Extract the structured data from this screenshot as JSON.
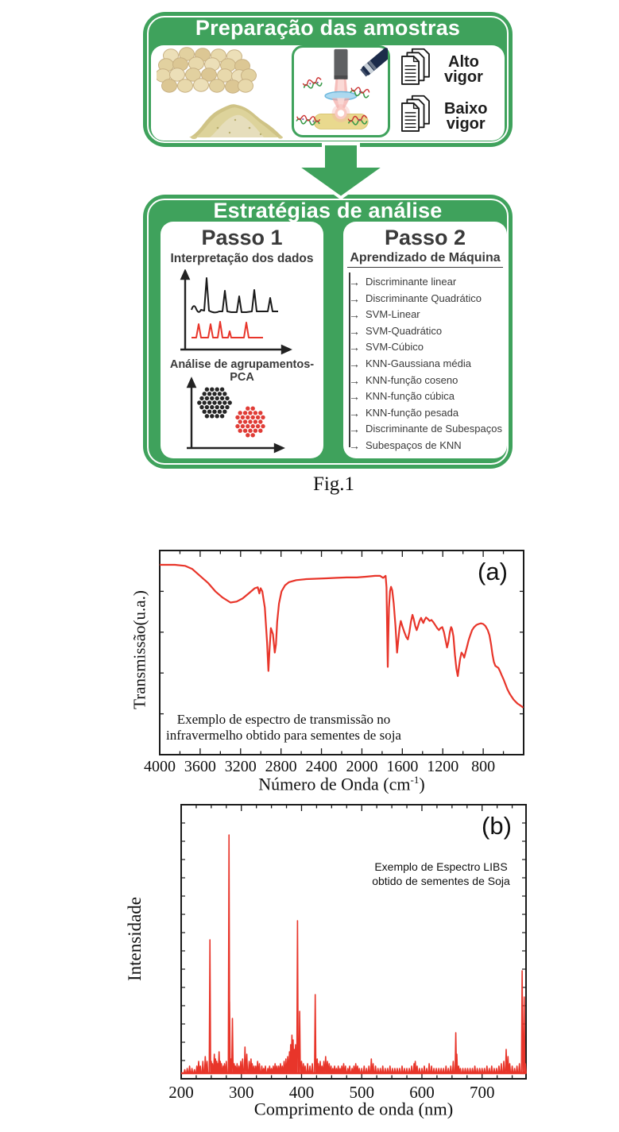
{
  "colors": {
    "green": "#3fa25c",
    "red": "#e8352a",
    "dark": "#3a3a3a"
  },
  "figure": {
    "caption": "Fig.1",
    "prep": {
      "title": "Preparação das amostras",
      "images": [
        "soybean-seeds-photo",
        "soy-flour-photo",
        "laser-ablation-illustration"
      ],
      "docs": [
        {
          "line1": "Alto",
          "line2": "vigor"
        },
        {
          "line1": "Baixo",
          "line2": "vigor"
        }
      ]
    },
    "analysis": {
      "title": "Estratégias de análise",
      "step1": {
        "title": "Passo 1",
        "sub_data": "Interpretação dos dados",
        "sub_pca": "Análise de agrupamentos-PCA"
      },
      "step2": {
        "title": "Passo 2",
        "subtitle": "Aprendizado de Máquina",
        "arrow_glyph": "→",
        "methods": [
          "Discriminante linear",
          "Discriminante Quadrático",
          "SVM-Linear",
          "SVM-Quadrático",
          "SVM-Cúbico",
          "KNN-Gaussiana média",
          "KNN-função coseno",
          "KNN-função cúbica",
          "KNN-função pesada",
          "Discriminante de Subespaços",
          "Subespaços de KNN"
        ]
      }
    }
  },
  "chart_data": [
    {
      "id": "ir",
      "type": "line",
      "panel_label": "(a)",
      "ylabel": "Transmissão(u.a.)",
      "xlabel": {
        "main": "Número de Onda (cm",
        "sup": "-1",
        "end": ")"
      },
      "annotation": [
        "Exemplo de espectro de transmissão no",
        "infravermelho obtido para sementes de soja"
      ],
      "x_range": [
        4000,
        400
      ],
      "x_reversed": true,
      "x_ticks": [
        4000,
        3600,
        3200,
        2800,
        2400,
        2000,
        1600,
        1200,
        800
      ],
      "x_minor_step": 200,
      "ylim": [
        0,
        1
      ],
      "points": [
        [
          4000,
          0.93
        ],
        [
          3850,
          0.93
        ],
        [
          3750,
          0.925
        ],
        [
          3680,
          0.91
        ],
        [
          3600,
          0.875
        ],
        [
          3520,
          0.84
        ],
        [
          3450,
          0.8
        ],
        [
          3380,
          0.77
        ],
        [
          3300,
          0.745
        ],
        [
          3240,
          0.75
        ],
        [
          3180,
          0.765
        ],
        [
          3120,
          0.79
        ],
        [
          3060,
          0.815
        ],
        [
          3030,
          0.82
        ],
        [
          3014,
          0.79
        ],
        [
          3002,
          0.815
        ],
        [
          2985,
          0.8
        ],
        [
          2960,
          0.72
        ],
        [
          2938,
          0.55
        ],
        [
          2925,
          0.41
        ],
        [
          2915,
          0.5
        ],
        [
          2900,
          0.62
        ],
        [
          2880,
          0.59
        ],
        [
          2862,
          0.5
        ],
        [
          2850,
          0.54
        ],
        [
          2838,
          0.65
        ],
        [
          2820,
          0.74
        ],
        [
          2795,
          0.8
        ],
        [
          2760,
          0.83
        ],
        [
          2720,
          0.845
        ],
        [
          2650,
          0.855
        ],
        [
          2550,
          0.86
        ],
        [
          2450,
          0.862
        ],
        [
          2350,
          0.864
        ],
        [
          2250,
          0.866
        ],
        [
          2150,
          0.868
        ],
        [
          2050,
          0.868
        ],
        [
          1950,
          0.872
        ],
        [
          1870,
          0.876
        ],
        [
          1820,
          0.876
        ],
        [
          1790,
          0.866
        ],
        [
          1775,
          0.872
        ],
        [
          1765,
          0.876
        ],
        [
          1757,
          0.82
        ],
        [
          1750,
          0.6
        ],
        [
          1744,
          0.43
        ],
        [
          1739,
          0.56
        ],
        [
          1732,
          0.72
        ],
        [
          1722,
          0.8
        ],
        [
          1712,
          0.822
        ],
        [
          1700,
          0.805
        ],
        [
          1685,
          0.74
        ],
        [
          1668,
          0.63
        ],
        [
          1652,
          0.5
        ],
        [
          1640,
          0.56
        ],
        [
          1628,
          0.62
        ],
        [
          1615,
          0.655
        ],
        [
          1600,
          0.63
        ],
        [
          1580,
          0.6
        ],
        [
          1560,
          0.575
        ],
        [
          1545,
          0.565
        ],
        [
          1530,
          0.6
        ],
        [
          1515,
          0.65
        ],
        [
          1500,
          0.685
        ],
        [
          1488,
          0.665
        ],
        [
          1472,
          0.63
        ],
        [
          1458,
          0.61
        ],
        [
          1445,
          0.63
        ],
        [
          1430,
          0.655
        ],
        [
          1415,
          0.67
        ],
        [
          1402,
          0.655
        ],
        [
          1392,
          0.645
        ],
        [
          1380,
          0.66
        ],
        [
          1365,
          0.672
        ],
        [
          1348,
          0.665
        ],
        [
          1330,
          0.655
        ],
        [
          1312,
          0.66
        ],
        [
          1295,
          0.65
        ],
        [
          1275,
          0.635
        ],
        [
          1255,
          0.62
        ],
        [
          1238,
          0.61
        ],
        [
          1222,
          0.62
        ],
        [
          1205,
          0.625
        ],
        [
          1188,
          0.6
        ],
        [
          1172,
          0.56
        ],
        [
          1158,
          0.525
        ],
        [
          1145,
          0.55
        ],
        [
          1130,
          0.6
        ],
        [
          1118,
          0.625
        ],
        [
          1108,
          0.615
        ],
        [
          1095,
          0.58
        ],
        [
          1080,
          0.49
        ],
        [
          1065,
          0.42
        ],
        [
          1052,
          0.385
        ],
        [
          1040,
          0.43
        ],
        [
          1028,
          0.47
        ],
        [
          1015,
          0.5
        ],
        [
          1000,
          0.49
        ],
        [
          988,
          0.475
        ],
        [
          975,
          0.5
        ],
        [
          960,
          0.53
        ],
        [
          945,
          0.56
        ],
        [
          928,
          0.585
        ],
        [
          910,
          0.61
        ],
        [
          890,
          0.625
        ],
        [
          868,
          0.635
        ],
        [
          845,
          0.64
        ],
        [
          822,
          0.643
        ],
        [
          800,
          0.64
        ],
        [
          778,
          0.63
        ],
        [
          755,
          0.61
        ],
        [
          738,
          0.585
        ],
        [
          722,
          0.54
        ],
        [
          708,
          0.49
        ],
        [
          695,
          0.455
        ],
        [
          680,
          0.435
        ],
        [
          665,
          0.43
        ],
        [
          650,
          0.425
        ],
        [
          635,
          0.41
        ],
        [
          618,
          0.39
        ],
        [
          600,
          0.37
        ],
        [
          580,
          0.345
        ],
        [
          560,
          0.32
        ],
        [
          540,
          0.3
        ],
        [
          520,
          0.285
        ],
        [
          500,
          0.27
        ],
        [
          480,
          0.26
        ],
        [
          460,
          0.25
        ],
        [
          445,
          0.245
        ],
        [
          430,
          0.24
        ],
        [
          415,
          0.235
        ],
        [
          405,
          0.23
        ]
      ]
    },
    {
      "id": "libs",
      "type": "peaks",
      "panel_label": "(b)",
      "ylabel": "Intensidade",
      "xlabel": {
        "main": "Comprimento de onda (nm)",
        "sup": "",
        "end": ""
      },
      "annotation": [
        "Exemplo de Espectro LIBS",
        "obtido de sementes de Soja"
      ],
      "x_range": [
        200,
        773
      ],
      "x_reversed": false,
      "x_ticks": [
        200,
        300,
        400,
        500,
        600,
        700
      ],
      "x_minor_step": 25,
      "ylim": [
        0,
        1
      ],
      "peaks": [
        [
          206,
          0.015
        ],
        [
          210,
          0.02
        ],
        [
          214,
          0.03
        ],
        [
          218,
          0.02
        ],
        [
          222,
          0.015
        ],
        [
          226,
          0.03
        ],
        [
          229,
          0.05
        ],
        [
          232,
          0.03
        ],
        [
          236,
          0.05
        ],
        [
          240,
          0.07
        ],
        [
          243,
          0.05
        ],
        [
          247.8,
          0.56
        ],
        [
          250,
          0.05
        ],
        [
          252,
          0.04
        ],
        [
          255,
          0.08
        ],
        [
          257,
          0.06
        ],
        [
          259,
          0.05
        ],
        [
          261,
          0.04
        ],
        [
          263,
          0.09
        ],
        [
          265,
          0.05
        ],
        [
          267,
          0.04
        ],
        [
          270,
          0.03
        ],
        [
          272,
          0.04
        ],
        [
          275,
          0.05
        ],
        [
          279.5,
          1.0
        ],
        [
          280.4,
          0.3
        ],
        [
          283,
          0.06
        ],
        [
          285.2,
          0.23
        ],
        [
          288,
          0.04
        ],
        [
          290,
          0.03
        ],
        [
          293,
          0.04
        ],
        [
          296,
          0.03
        ],
        [
          299,
          0.05
        ],
        [
          302,
          0.06
        ],
        [
          306,
          0.11
        ],
        [
          309,
          0.08
        ],
        [
          313,
          0.05
        ],
        [
          316,
          0.06
        ],
        [
          318,
          0.04
        ],
        [
          321,
          0.03
        ],
        [
          324,
          0.03
        ],
        [
          327,
          0.05
        ],
        [
          330,
          0.04
        ],
        [
          334,
          0.03
        ],
        [
          337,
          0.02
        ],
        [
          340,
          0.03
        ],
        [
          344,
          0.02
        ],
        [
          347,
          0.03
        ],
        [
          350,
          0.02
        ],
        [
          353,
          0.03
        ],
        [
          356,
          0.04
        ],
        [
          359,
          0.03
        ],
        [
          362,
          0.03
        ],
        [
          365,
          0.04
        ],
        [
          368,
          0.03
        ],
        [
          371,
          0.05
        ],
        [
          374,
          0.06
        ],
        [
          377,
          0.07
        ],
        [
          380,
          0.09
        ],
        [
          382,
          0.12
        ],
        [
          384,
          0.16
        ],
        [
          386,
          0.14
        ],
        [
          388,
          0.1
        ],
        [
          390,
          0.12
        ],
        [
          393.3,
          0.64
        ],
        [
          396.8,
          0.26
        ],
        [
          400,
          0.05
        ],
        [
          403,
          0.04
        ],
        [
          406,
          0.03
        ],
        [
          410,
          0.04
        ],
        [
          414,
          0.03
        ],
        [
          418,
          0.04
        ],
        [
          422.7,
          0.33
        ],
        [
          426,
          0.06
        ],
        [
          428,
          0.04
        ],
        [
          431,
          0.05
        ],
        [
          434,
          0.03
        ],
        [
          437,
          0.05
        ],
        [
          440,
          0.07
        ],
        [
          443,
          0.05
        ],
        [
          446,
          0.04
        ],
        [
          449,
          0.03
        ],
        [
          452,
          0.02
        ],
        [
          455,
          0.03
        ],
        [
          458,
          0.02
        ],
        [
          461,
          0.03
        ],
        [
          464,
          0.02
        ],
        [
          467,
          0.03
        ],
        [
          470,
          0.04
        ],
        [
          473,
          0.03
        ],
        [
          477,
          0.02
        ],
        [
          480,
          0.03
        ],
        [
          484,
          0.02
        ],
        [
          487,
          0.03
        ],
        [
          490,
          0.04
        ],
        [
          493,
          0.03
        ],
        [
          496,
          0.02
        ],
        [
          500,
          0.02
        ],
        [
          504,
          0.03
        ],
        [
          508,
          0.02
        ],
        [
          512,
          0.03
        ],
        [
          516,
          0.06
        ],
        [
          519,
          0.04
        ],
        [
          523,
          0.03
        ],
        [
          527,
          0.02
        ],
        [
          531,
          0.02
        ],
        [
          535,
          0.03
        ],
        [
          539,
          0.02
        ],
        [
          543,
          0.02
        ],
        [
          547,
          0.03
        ],
        [
          551,
          0.02
        ],
        [
          555,
          0.02
        ],
        [
          559,
          0.02
        ],
        [
          563,
          0.02
        ],
        [
          567,
          0.03
        ],
        [
          571,
          0.02
        ],
        [
          575,
          0.02
        ],
        [
          579,
          0.02
        ],
        [
          583,
          0.03
        ],
        [
          587,
          0.04
        ],
        [
          589,
          0.05
        ],
        [
          592,
          0.03
        ],
        [
          596,
          0.02
        ],
        [
          600,
          0.02
        ],
        [
          604,
          0.03
        ],
        [
          608,
          0.02
        ],
        [
          612,
          0.04
        ],
        [
          616,
          0.03
        ],
        [
          620,
          0.02
        ],
        [
          624,
          0.02
        ],
        [
          628,
          0.02
        ],
        [
          632,
          0.02
        ],
        [
          636,
          0.02
        ],
        [
          640,
          0.03
        ],
        [
          644,
          0.02
        ],
        [
          648,
          0.03
        ],
        [
          652,
          0.05
        ],
        [
          656.3,
          0.17
        ],
        [
          658,
          0.08
        ],
        [
          661,
          0.03
        ],
        [
          664,
          0.02
        ],
        [
          668,
          0.02
        ],
        [
          672,
          0.02
        ],
        [
          676,
          0.02
        ],
        [
          680,
          0.02
        ],
        [
          684,
          0.02
        ],
        [
          688,
          0.03
        ],
        [
          692,
          0.02
        ],
        [
          696,
          0.02
        ],
        [
          700,
          0.02
        ],
        [
          704,
          0.02
        ],
        [
          708,
          0.03
        ],
        [
          712,
          0.02
        ],
        [
          716,
          0.03
        ],
        [
          720,
          0.02
        ],
        [
          724,
          0.02
        ],
        [
          728,
          0.03
        ],
        [
          732,
          0.04
        ],
        [
          736,
          0.05
        ],
        [
          740,
          0.1
        ],
        [
          743,
          0.07
        ],
        [
          746,
          0.04
        ],
        [
          750,
          0.03
        ],
        [
          754,
          0.02
        ],
        [
          758,
          0.03
        ],
        [
          762,
          0.04
        ],
        [
          766.5,
          0.43
        ],
        [
          769.9,
          0.32
        ],
        [
          772,
          0.04
        ]
      ]
    }
  ]
}
